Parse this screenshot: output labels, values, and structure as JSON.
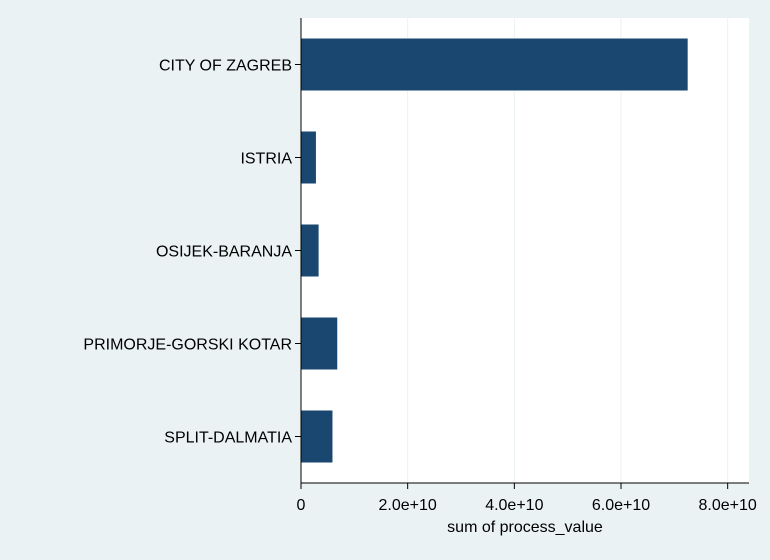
{
  "chart_data": {
    "type": "bar",
    "orientation": "horizontal",
    "categories": [
      "CITY OF ZAGREB",
      "ISTRIA",
      "OSIJEK-BARANJA",
      "PRIMORJE-GORSKI KOTAR",
      "SPLIT-DALMATIA"
    ],
    "values": [
      72500000000,
      2800000000,
      3300000000,
      6800000000,
      5900000000
    ],
    "xlabel": "sum of process_value",
    "ylabel": "",
    "title": "",
    "xlim": [
      0,
      84000000000
    ],
    "xticks": [
      0,
      20000000000,
      40000000000,
      60000000000,
      80000000000
    ],
    "xtick_labels": [
      "0",
      "2.0e+10",
      "4.0e+10",
      "6.0e+10",
      "8.0e+10"
    ],
    "grid": "vertical",
    "colors": {
      "bar": "#1a476f",
      "plot_background": "#ffffff",
      "page_background": "#eaf2f3",
      "gridline": "#eaf2f3"
    }
  }
}
